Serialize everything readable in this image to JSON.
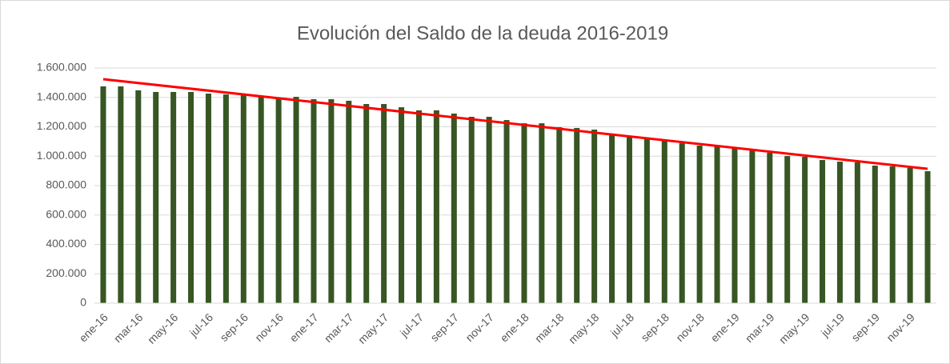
{
  "chart_data": {
    "type": "bar",
    "title": "Evolución del Saldo de la deuda 2016-2019",
    "categories": [
      "ene-16",
      null,
      "mar-16",
      null,
      "may-16",
      null,
      "jul-16",
      null,
      "sep-16",
      null,
      "nov-16",
      null,
      "ene-17",
      null,
      "mar-17",
      null,
      "may-17",
      null,
      "jul-17",
      null,
      "sep-17",
      null,
      "nov-17",
      null,
      "ene-18",
      null,
      "mar-18",
      null,
      "may-18",
      null,
      "jul-18",
      null,
      "sep-18",
      null,
      "nov-18",
      null,
      "ene-19",
      null,
      "mar-19",
      null,
      "may-19",
      null,
      "jul-19",
      null,
      "sep-19",
      null,
      "nov-19",
      null
    ],
    "values": [
      1475000,
      1475000,
      1448000,
      1437000,
      1437000,
      1437000,
      1426000,
      1420000,
      1415000,
      1404000,
      1388000,
      1404000,
      1388000,
      1388000,
      1377000,
      1355000,
      1355000,
      1333000,
      1312000,
      1312000,
      1290000,
      1268000,
      1268000,
      1246000,
      1224000,
      1224000,
      1197000,
      1192000,
      1181000,
      1154000,
      1137000,
      1127000,
      1105000,
      1088000,
      1072000,
      1067000,
      1056000,
      1039000,
      1023000,
      1001000,
      996000,
      974000,
      963000,
      958000,
      936000,
      931000,
      920000,
      898000
    ],
    "color": "#375623",
    "trendline": {
      "color": "#ff0000",
      "values": [
        1524000,
        914000
      ]
    },
    "ylim": [
      0,
      1600000
    ],
    "yticks": [
      0,
      {
        "value": 200000,
        "label": "200.000"
      },
      {
        "value": 400000,
        "label": "400.000"
      },
      {
        "value": 600000,
        "label": "600.000"
      },
      {
        "value": 800000,
        "label": "800.000"
      },
      {
        "value": 1000000,
        "label": "1.000.000"
      },
      {
        "value": 1200000,
        "label": "1.200.000"
      },
      {
        "value": 1400000,
        "label": "1.400.000"
      },
      {
        "value": 1600000,
        "label": "1.600.000"
      }
    ],
    "grid": true
  }
}
